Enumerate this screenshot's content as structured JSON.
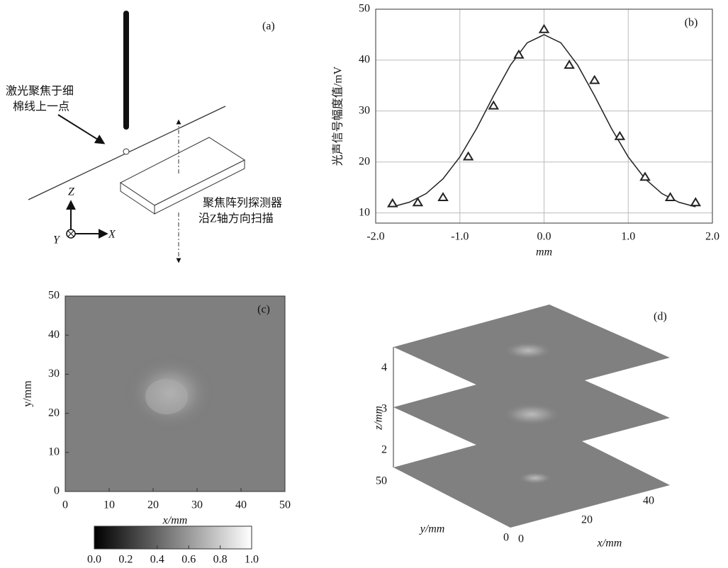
{
  "panel_a": {
    "label": "(a)",
    "annotation": [
      "激光聚焦于细",
      "棉线上一点"
    ],
    "detector": [
      "聚焦阵列探测器",
      "沿Z轴方向扫描"
    ],
    "axes": {
      "z": "Z",
      "y": "Y",
      "x": "X"
    }
  },
  "chart_data": [
    {
      "type": "scatter",
      "label": "(b)",
      "x_label": "mm",
      "y_label": "光声信号幅度值/mV",
      "points": {
        "marker": "triangle",
        "x": [
          -1.8,
          -1.5,
          -1.2,
          -0.9,
          -0.6,
          -0.3,
          0,
          0.3,
          0.6,
          0.9,
          1.2,
          1.5,
          1.8
        ],
        "y": [
          11.8,
          12,
          13,
          21,
          31,
          41,
          46,
          39,
          36,
          25,
          17,
          13,
          12
        ]
      },
      "fit": {
        "x": [
          -1.8,
          -1.6,
          -1.4,
          -1.2,
          -1.0,
          -0.8,
          -0.6,
          -0.4,
          -0.2,
          0,
          0.2,
          0.4,
          0.6,
          0.8,
          1.0,
          1.2,
          1.4,
          1.6,
          1.8
        ],
        "y": [
          11.2,
          12.1,
          13.8,
          16.7,
          21.0,
          26.6,
          33.0,
          39.0,
          43.4,
          45.0,
          43.4,
          39.0,
          33.0,
          26.6,
          21.0,
          16.7,
          13.8,
          12.1,
          11.2
        ]
      },
      "xlim": [
        -2,
        2
      ],
      "ylim": [
        8,
        50
      ],
      "xticks": [
        {
          "value": -2,
          "label": "-2.0"
        },
        {
          "value": -1,
          "label": "-1.0"
        },
        {
          "value": 0,
          "label": "0.0"
        },
        {
          "value": 1,
          "label": "1.0"
        },
        {
          "value": 2,
          "label": "2.0"
        }
      ],
      "yticks": [
        10,
        20,
        30,
        40,
        50
      ],
      "grid": true,
      "color": "#222"
    },
    {
      "type": "image",
      "label": "(c)",
      "x_label": "x/mm",
      "y_label": "y/mm",
      "xlim": [
        0,
        50
      ],
      "ylim": [
        0,
        50
      ],
      "xticks": [
        0,
        10,
        20,
        30,
        40,
        50
      ],
      "yticks": [
        0,
        10,
        20,
        30,
        40,
        50
      ],
      "colorbar": {
        "lim": [
          0,
          1
        ],
        "ticks": [
          {
            "value": 0,
            "label": "0.0"
          },
          {
            "value": 0.2,
            "label": "0.2"
          },
          {
            "value": 0.4,
            "label": "0.4"
          },
          {
            "value": 0.6,
            "label": "0.6"
          },
          {
            "value": 0.8,
            "label": "0.8"
          },
          {
            "value": 1,
            "label": "1.0"
          }
        ]
      }
    }
  ],
  "panel_d": {
    "label": "(d)",
    "z_label": "z/mm",
    "y_label": "y/mm",
    "x_label": "x/mm",
    "z_ticks": [
      "4",
      "3",
      "2"
    ],
    "y_ticks": [
      "50",
      "0"
    ],
    "x_ticks": [
      "0",
      "20",
      "40"
    ]
  }
}
